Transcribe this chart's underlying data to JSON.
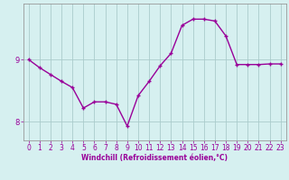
{
  "x": [
    0,
    1,
    2,
    3,
    4,
    5,
    6,
    7,
    8,
    9,
    10,
    11,
    12,
    13,
    14,
    15,
    16,
    17,
    18,
    19,
    20,
    21,
    22,
    23
  ],
  "y": [
    9.0,
    8.87,
    8.76,
    8.65,
    8.55,
    8.22,
    8.32,
    8.32,
    8.28,
    7.93,
    8.42,
    8.65,
    8.9,
    9.1,
    9.55,
    9.65,
    9.65,
    9.62,
    9.38,
    8.92,
    8.92,
    8.92,
    8.93,
    8.93
  ],
  "line_color": "#990099",
  "marker": "+",
  "marker_size": 3,
  "bg_color": "#d6f0f0",
  "grid_color": "#aacccc",
  "xlabel": "Windchill (Refroidissement éolien,°C)",
  "xlabel_color": "#990099",
  "tick_color": "#990099",
  "yticks": [
    8,
    9
  ],
  "ylim": [
    7.7,
    9.9
  ],
  "xlim": [
    -0.5,
    23.5
  ],
  "tick_fontsize": 5.5,
  "xlabel_fontsize": 5.5,
  "ylabel_fontsize": 6,
  "linewidth": 1.0
}
